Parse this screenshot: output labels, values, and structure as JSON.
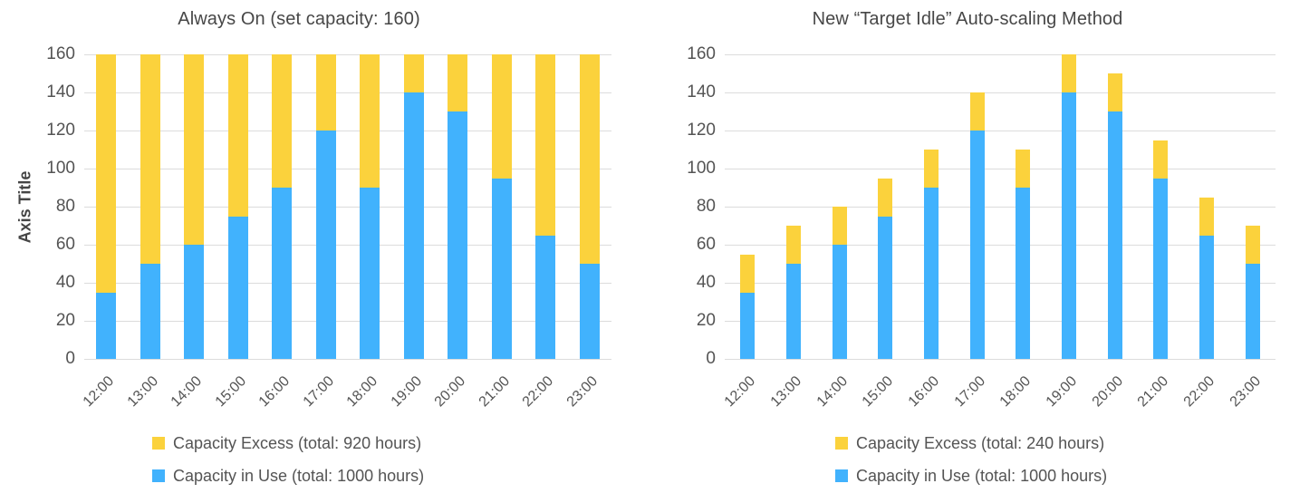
{
  "colors": {
    "capacity_in_use": "#41B2FD",
    "capacity_excess": "#FBD23C",
    "gridline": "#DCDCDC",
    "text": "#545454"
  },
  "chart_data": [
    {
      "type": "bar",
      "stacked": true,
      "title": "Always On (set capacity: 160)",
      "y_axis_title": "Axis Title",
      "categories": [
        "12:00",
        "13:00",
        "14:00",
        "15:00",
        "16:00",
        "17:00",
        "18:00",
        "19:00",
        "20:00",
        "21:00",
        "22:00",
        "23:00"
      ],
      "series": [
        {
          "name": "Capacity in Use",
          "color": "#41B2FD",
          "values": [
            35,
            50,
            60,
            75,
            90,
            120,
            90,
            140,
            130,
            95,
            65,
            50
          ]
        },
        {
          "name": "Capacity Excess",
          "color": "#FBD23C",
          "values": [
            125,
            110,
            100,
            85,
            70,
            40,
            70,
            20,
            30,
            65,
            95,
            110
          ]
        }
      ],
      "ylim": [
        0,
        160
      ],
      "ytick_step": 20,
      "grid": true,
      "legend_position": "bottom",
      "legend": [
        {
          "label": "Capacity Excess (total: 920 hours)",
          "color": "#FBD23C"
        },
        {
          "label": "Capacity in Use (total: 1000 hours)",
          "color": "#41B2FD"
        }
      ]
    },
    {
      "type": "bar",
      "stacked": true,
      "title": "New “Target Idle” Auto-scaling Method",
      "y_axis_title": "",
      "categories": [
        "12:00",
        "13:00",
        "14:00",
        "15:00",
        "16:00",
        "17:00",
        "18:00",
        "19:00",
        "20:00",
        "21:00",
        "22:00",
        "23:00"
      ],
      "series": [
        {
          "name": "Capacity in Use",
          "color": "#41B2FD",
          "values": [
            35,
            50,
            60,
            75,
            90,
            120,
            90,
            140,
            130,
            95,
            65,
            50
          ]
        },
        {
          "name": "Capacity Excess",
          "color": "#FBD23C",
          "values": [
            20,
            20,
            20,
            20,
            20,
            20,
            20,
            20,
            20,
            20,
            20,
            20
          ]
        }
      ],
      "ylim": [
        0,
        160
      ],
      "ytick_step": 20,
      "grid": true,
      "legend_position": "bottom",
      "legend": [
        {
          "label": "Capacity Excess (total: 240 hours)",
          "color": "#FBD23C"
        },
        {
          "label": "Capacity in Use (total: 1000 hours)",
          "color": "#41B2FD"
        }
      ]
    }
  ]
}
